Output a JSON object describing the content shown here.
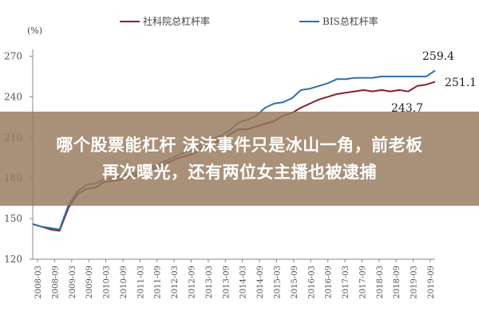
{
  "overlay": {
    "line1": "哪个股票能杠杆 沫沫事件只是冰山一角，前老板",
    "line2": "再次曝光，还有两位女主播也被逮捕"
  },
  "chart_data": {
    "type": "line",
    "ylabel": "(%)",
    "ylim": [
      120,
      275
    ],
    "yticks": [
      120,
      150,
      180,
      210,
      240,
      270
    ],
    "x_ticklabels": [
      "2008-03",
      "2008-09",
      "2009-03",
      "2009-09",
      "2010-03",
      "2010-09",
      "2011-03",
      "2011-09",
      "2012-03",
      "2012-09",
      "2013-03",
      "2013-09",
      "2014-03",
      "2014-09",
      "2015-03",
      "2015-09",
      "2016-03",
      "2016-09",
      "2017-03",
      "2017-09",
      "2018-03",
      "2018-09",
      "2019-03",
      "2019-09"
    ],
    "grid": false,
    "legend_position": "top",
    "series": [
      {
        "name": "社科院总杠杆率",
        "color": "#8b1e2e",
        "x": [
          0,
          1,
          2,
          3,
          4,
          5,
          6,
          7,
          8,
          9,
          10,
          11,
          12,
          13,
          14,
          15,
          16,
          17,
          18,
          19,
          20,
          21,
          22,
          23,
          24,
          25,
          26,
          27,
          28,
          29,
          30,
          31,
          32,
          33,
          34,
          35,
          36,
          37,
          38,
          39,
          40,
          41,
          42,
          43,
          44,
          45
        ],
        "values": [
          146,
          144,
          142,
          141,
          158,
          168,
          172,
          173,
          177,
          178,
          179,
          181,
          182,
          185,
          188,
          191,
          194,
          196,
          198,
          203,
          205,
          208,
          212,
          216,
          216,
          218,
          220,
          222,
          226,
          228,
          232,
          235,
          238,
          240,
          242,
          243,
          244,
          245,
          244,
          245,
          244,
          245,
          244,
          248,
          249,
          251.1
        ]
      },
      {
        "name": "BIS总杠杆率",
        "color": "#2e6fad",
        "x": [
          0,
          1,
          2,
          3,
          4,
          5,
          6,
          7,
          8,
          9,
          10,
          11,
          12,
          13,
          14,
          15,
          16,
          17,
          18,
          19,
          20,
          21,
          22,
          23,
          24,
          25,
          26,
          27,
          28,
          29,
          30,
          31,
          32,
          33,
          34,
          35,
          36,
          37,
          38,
          39,
          40,
          41,
          42,
          43,
          44,
          45
        ],
        "values": [
          146,
          144,
          143,
          142,
          160,
          170,
          175,
          176,
          179,
          180,
          182,
          183,
          184,
          187,
          190,
          193,
          196,
          199,
          201,
          206,
          209,
          211,
          215,
          221,
          223,
          226,
          232,
          235,
          236,
          239,
          245,
          246,
          248,
          250,
          253,
          253,
          254,
          254,
          254,
          255,
          255,
          255,
          255,
          255,
          255,
          259.4
        ]
      }
    ],
    "annotations": [
      "259.4",
      "251.1",
      "243.7"
    ]
  }
}
